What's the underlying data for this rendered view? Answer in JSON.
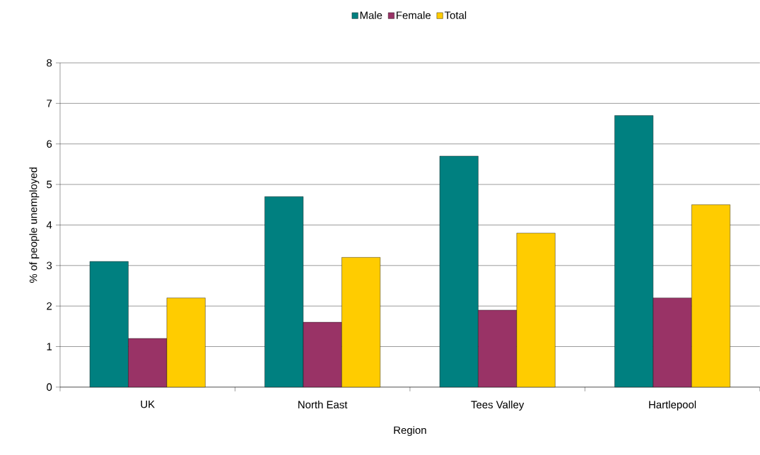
{
  "chart_data": {
    "type": "bar",
    "xlabel": "Region",
    "ylabel": "% of people unemployed",
    "categories": [
      "UK",
      "North East",
      "Tees Valley",
      "Hartlepool"
    ],
    "series": [
      {
        "name": "Male",
        "color": "#008080",
        "values": [
          3.1,
          4.7,
          5.7,
          6.7
        ]
      },
      {
        "name": "Female",
        "color": "#993366",
        "values": [
          1.2,
          1.6,
          1.9,
          2.2
        ]
      },
      {
        "name": "Total",
        "color": "#ffcc00",
        "values": [
          2.2,
          3.2,
          3.8,
          4.5
        ]
      }
    ],
    "ylim": [
      0,
      8
    ],
    "yticks": [
      0,
      1,
      2,
      3,
      4,
      5,
      6,
      7,
      8
    ],
    "grid": "y",
    "legend": "top"
  }
}
